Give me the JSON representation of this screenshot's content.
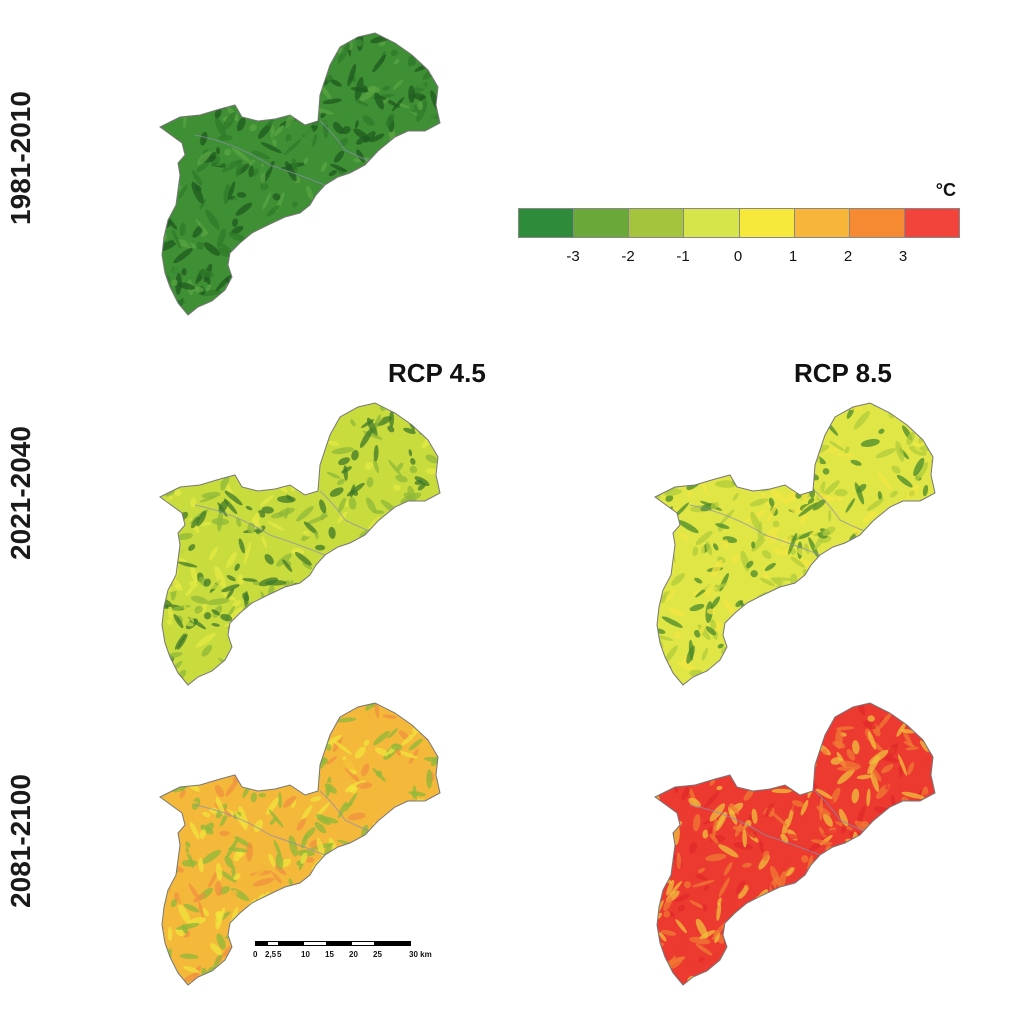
{
  "rows": [
    "1981-2010",
    "2021-2040",
    "2081-2100"
  ],
  "columns": [
    "RCP 4.5",
    "RCP 8.5"
  ],
  "legend": {
    "unit": "°C",
    "ticks": [
      "-3",
      "-2",
      "-1",
      "0",
      "1",
      "2",
      "3"
    ],
    "colors": [
      "#2e8b3a",
      "#6aa83a",
      "#a3c43c",
      "#d6e64a",
      "#f7e93c",
      "#f7b53a",
      "#f58a32",
      "#f2443a"
    ]
  },
  "maps": [
    {
      "id": "baseline",
      "period": "1981-2010",
      "scenario": "",
      "palette": [
        "#1f5a1f",
        "#2f7a2a",
        "#3f8f35",
        "#5aa442"
      ]
    },
    {
      "id": "r2-45",
      "period": "2021-2040",
      "scenario": "RCP 4.5",
      "palette": [
        "#3f7a2a",
        "#8fb83a",
        "#c9dc3e",
        "#e4ea44"
      ]
    },
    {
      "id": "r2-85",
      "period": "2021-2040",
      "scenario": "RCP 8.5",
      "palette": [
        "#4a8a2c",
        "#b0cc3c",
        "#dfe646",
        "#f3e642"
      ]
    },
    {
      "id": "r3-45",
      "period": "2081-2100",
      "scenario": "RCP 4.5",
      "palette": [
        "#8fb83a",
        "#f2e43c",
        "#f4b83a",
        "#f09040"
      ]
    },
    {
      "id": "r3-85",
      "period": "2081-2100",
      "scenario": "RCP 8.5",
      "palette": [
        "#f0c23c",
        "#f07a34",
        "#ec3a30",
        "#e12a2a"
      ]
    }
  ],
  "scalebar": {
    "labels": [
      "0",
      "2,5",
      "5",
      "10",
      "15",
      "20",
      "25",
      "30 km"
    ]
  }
}
